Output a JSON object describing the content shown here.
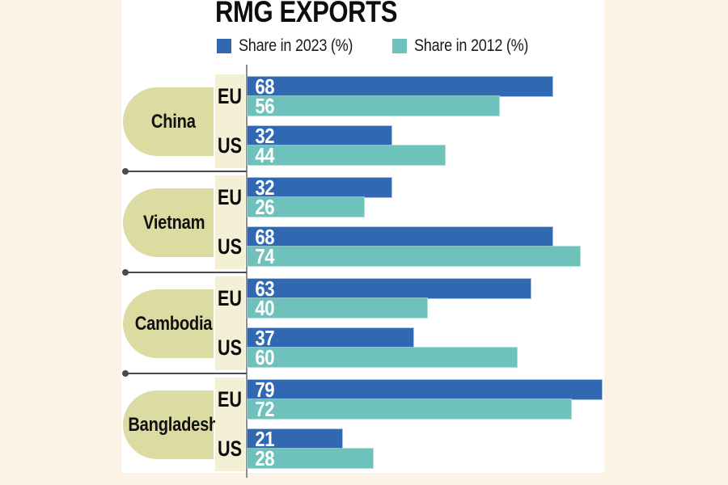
{
  "header": {
    "title": "RMG EXPORTS"
  },
  "legend": [
    {
      "label": "Share in 2023 (%)",
      "color": "#3069B2"
    },
    {
      "label": "Share in 2012 (%)",
      "color": "#6FC2BB"
    }
  ],
  "colors": {
    "share_2023": "#3069B2",
    "share_2012": "#6FC2BB",
    "background": "#FDF2E6",
    "panel": "#FFFFFF",
    "country_pill": "#DCDCA2",
    "market_strip": "#F3F0D6",
    "separator": "#4A4A4A",
    "axis": "#8C8C8C",
    "value_text": "#FFFFFF"
  },
  "chart_data": {
    "type": "bar",
    "orientation": "horizontal",
    "title": "RMG EXPORTS",
    "value_unit": "%",
    "series_names": [
      "Share in 2023 (%)",
      "Share in 2012 (%)"
    ],
    "xlim": [
      0,
      80
    ],
    "grid": false,
    "legend_position": "top",
    "groups": [
      {
        "country": "China",
        "markets": [
          {
            "market": "EU",
            "share_2023": 68,
            "share_2012": 56
          },
          {
            "market": "US",
            "share_2023": 32,
            "share_2012": 44
          }
        ]
      },
      {
        "country": "Vietnam",
        "markets": [
          {
            "market": "EU",
            "share_2023": 32,
            "share_2012": 26
          },
          {
            "market": "US",
            "share_2023": 68,
            "share_2012": 74
          }
        ]
      },
      {
        "country": "Cambodia",
        "markets": [
          {
            "market": "EU",
            "share_2023": 63,
            "share_2012": 40
          },
          {
            "market": "US",
            "share_2023": 37,
            "share_2012": 60
          }
        ]
      },
      {
        "country": "Bangladesh",
        "markets": [
          {
            "market": "EU",
            "share_2023": 79,
            "share_2012": 72
          },
          {
            "market": "US",
            "share_2023": 21,
            "share_2012": 28
          }
        ]
      }
    ]
  }
}
